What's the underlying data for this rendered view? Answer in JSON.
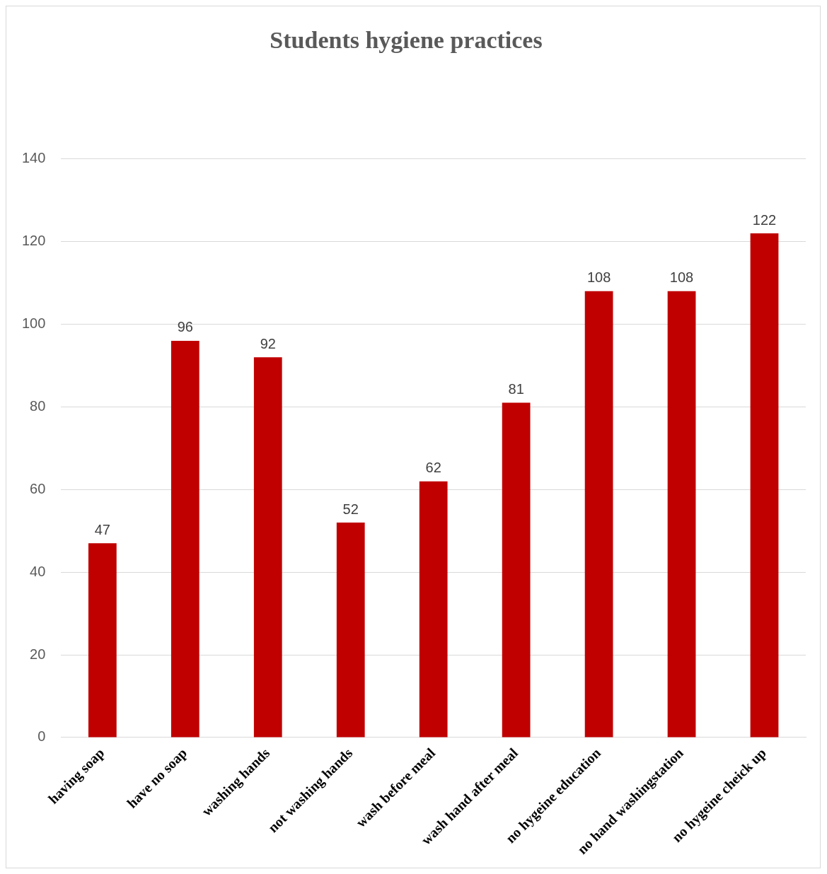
{
  "chart_data": {
    "type": "bar",
    "title": "Students hygiene practices",
    "categories": [
      "having soap",
      "have no soap",
      "washing hands",
      "not washing hands",
      "wash before meal",
      "wash hand after meal",
      "no hygeine education",
      "no hand washingstation",
      "no hygeine cheick up"
    ],
    "values": [
      47,
      96,
      92,
      52,
      62,
      81,
      108,
      108,
      122
    ],
    "color": "#c00000",
    "ylim": [
      0,
      140
    ],
    "yticks": [
      0,
      20,
      40,
      60,
      80,
      100,
      120,
      140
    ],
    "grid": "y",
    "legend": false,
    "data_labels": true
  }
}
